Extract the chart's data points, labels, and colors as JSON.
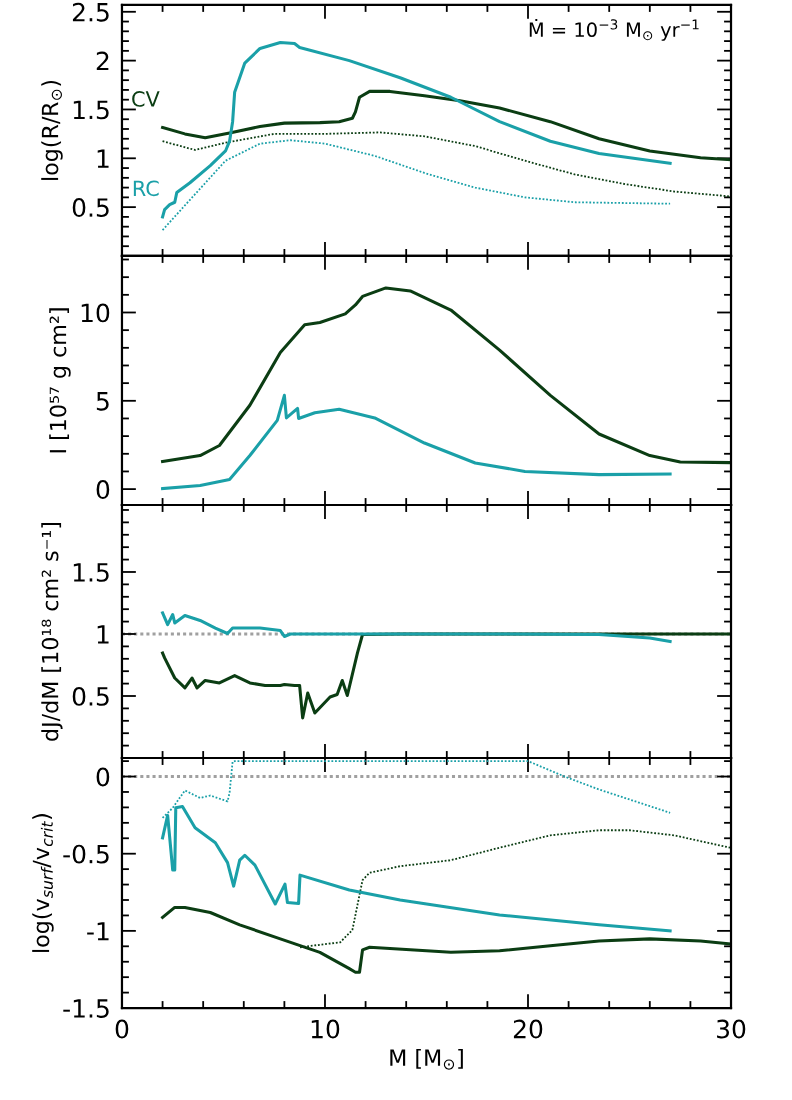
{
  "chart_data": [
    {
      "type": "line",
      "ylabel": "log(R/R$_{⊙}$)",
      "xlim": [
        0,
        30
      ],
      "xticks": [
        0,
        10,
        20,
        30
      ],
      "ylim": [
        0,
        2.57
      ],
      "yticks": [
        0.5,
        1,
        1.5,
        2,
        2.5
      ],
      "tick_labels": "y",
      "legend": false,
      "grid": false,
      "annotations": [
        "Ṁ = 10$^{−3}$ M$_{⊙}$ yr$^{−1}$"
      ],
      "series": [
        {
          "name": "CV",
          "color": "#0b3d13",
          "line_style": "solid",
          "x": [
            2.0,
            3.1,
            4.1,
            5.3,
            6.8,
            8.0,
            9.75,
            10.7,
            11.35,
            11.5,
            11.7,
            12.2,
            13.2,
            14.9,
            16.65,
            18.6,
            21.1,
            23.5,
            26,
            28.5,
            29.95
          ],
          "values": [
            1.315,
            1.25,
            1.21,
            1.26,
            1.325,
            1.36,
            1.365,
            1.375,
            1.41,
            1.475,
            1.625,
            1.685,
            1.685,
            1.64,
            1.59,
            1.515,
            1.375,
            1.2,
            1.075,
            1.005,
            0.985
          ]
        },
        {
          "color": "#0b3d13",
          "line_style": "dotted",
          "x": [
            2.0,
            3.6,
            5.1,
            7.5,
            10,
            12.7,
            14.9,
            17.4,
            19.85,
            22.3,
            24.8,
            27.2,
            29.95
          ],
          "values": [
            1.175,
            1.085,
            1.16,
            1.25,
            1.25,
            1.265,
            1.225,
            1.125,
            0.975,
            0.835,
            0.735,
            0.66,
            0.61
          ]
        },
        {
          "name": "RC",
          "color": "#1aa0a8",
          "line_style": "solid",
          "x": [
            2.0,
            2.1,
            2.35,
            2.6,
            2.7,
            3.35,
            4.35,
            5.1,
            5.3,
            5.45,
            5.55,
            6.05,
            6.8,
            7.8,
            8.5,
            8.75,
            11.2,
            13.7,
            16.2,
            18.6,
            21.1,
            23.5,
            27.0
          ],
          "values": [
            0.4,
            0.475,
            0.525,
            0.55,
            0.65,
            0.75,
            0.925,
            1.075,
            1.175,
            1.375,
            1.675,
            1.975,
            2.125,
            2.185,
            2.175,
            2.135,
            2.0,
            1.825,
            1.625,
            1.375,
            1.175,
            1.05,
            0.95
          ]
        },
        {
          "color": "#1aa0a8",
          "line_style": "dotted",
          "x": [
            2.0,
            3.35,
            5.1,
            6.8,
            8.3,
            10,
            12.45,
            14.9,
            17.4,
            19.85,
            22.3,
            27.0
          ],
          "values": [
            0.265,
            0.575,
            0.975,
            1.15,
            1.185,
            1.15,
            1.025,
            0.85,
            0.7,
            0.6,
            0.55,
            0.535
          ]
        }
      ]
    },
    {
      "type": "line",
      "ylabel": "I [10⁵⁷ g cm²]",
      "xlim": [
        0,
        30
      ],
      "xticks": [
        0,
        10,
        20,
        30
      ],
      "ylim": [
        -0.9,
        13.2
      ],
      "yticks": [
        0,
        5,
        10
      ],
      "tick_labels": "y",
      "legend": false,
      "grid": false,
      "series": [
        {
          "color": "#0b3d13",
          "line_style": "solid",
          "x": [
            2.0,
            3.85,
            4.8,
            6.3,
            7.8,
            9.0,
            9.75,
            11.0,
            11.5,
            11.85,
            13.0,
            14.2,
            16.2,
            18.6,
            21.1,
            23.5,
            26,
            27.5,
            29.95
          ],
          "values": [
            1.56,
            1.9,
            2.47,
            4.75,
            7.73,
            9.3,
            9.43,
            9.92,
            10.43,
            10.91,
            11.39,
            11.22,
            10.14,
            7.87,
            5.31,
            3.12,
            1.9,
            1.53,
            1.5
          ]
        },
        {
          "color": "#1aa0a8",
          "line_style": "solid",
          "x": [
            2.0,
            3.85,
            5.3,
            6.3,
            7.65,
            8.0,
            8.1,
            8.65,
            8.7,
            9.5,
            10.7,
            12.45,
            14.9,
            17.4,
            19.85,
            23.5,
            27.0
          ],
          "values": [
            0.03,
            0.2,
            0.54,
            1.9,
            3.89,
            5.31,
            4.03,
            4.57,
            4.0,
            4.32,
            4.52,
            4.03,
            2.61,
            1.48,
            1.0,
            0.82,
            0.85
          ]
        }
      ]
    },
    {
      "type": "line",
      "ylabel": "dJ/dM [10¹⁸ cm² s⁻¹]",
      "xlim": [
        0,
        30
      ],
      "xticks": [
        0,
        10,
        20,
        30
      ],
      "ylim": [
        0,
        2.04
      ],
      "yticks": [
        0.5,
        1,
        1.5
      ],
      "tick_labels": "y",
      "legend": false,
      "grid": false,
      "ref_lines": [
        {
          "axis": "y",
          "value": 1,
          "color": "#a0a0a0",
          "line_style": "dotted"
        }
      ],
      "series": [
        {
          "color": "#0b3d13",
          "line_style": "solid",
          "x": [
            2.0,
            2.1,
            2.6,
            3.1,
            3.45,
            3.7,
            4.1,
            4.8,
            5.55,
            6.3,
            7.05,
            7.8,
            8.0,
            8.5,
            8.75,
            8.9,
            9.15,
            9.5,
            10.25,
            10.6,
            10.85,
            11.1,
            11.6,
            11.85,
            13.7,
            29.95
          ],
          "values": [
            0.847,
            0.807,
            0.645,
            0.565,
            0.645,
            0.565,
            0.625,
            0.605,
            0.665,
            0.605,
            0.585,
            0.585,
            0.593,
            0.585,
            0.585,
            0.323,
            0.524,
            0.363,
            0.492,
            0.512,
            0.625,
            0.504,
            0.847,
            0.996,
            1.0,
            1.0
          ]
        },
        {
          "color": "#1aa0a8",
          "line_style": "solid",
          "x": [
            2.0,
            2.25,
            2.5,
            2.6,
            3.1,
            3.85,
            4.6,
            5.2,
            5.45,
            6.8,
            7.8,
            8.0,
            8.3,
            11.2,
            18.6,
            23.5,
            26,
            27.0
          ],
          "values": [
            1.17,
            1.076,
            1.157,
            1.089,
            1.149,
            1.109,
            1.048,
            1.004,
            1.048,
            1.048,
            1.028,
            0.98,
            1.0,
            1.0,
            1.0,
            0.996,
            0.968,
            0.94
          ]
        }
      ]
    },
    {
      "type": "line",
      "ylabel": "log(v$_{surf}$/v$_{crit}$)",
      "xlabel": "M [M$_{⊙}$]",
      "xlim": [
        0,
        30
      ],
      "xticks": [
        0,
        10,
        20,
        30
      ],
      "ylim": [
        -1.5,
        0.12
      ],
      "yticks": [
        {
          "value": -1.5,
          "label": "-1.5"
        },
        {
          "value": -1,
          "label": "-1"
        },
        {
          "value": -0.5,
          "label": "-0.5"
        },
        0
      ],
      "legend": false,
      "grid": false,
      "ref_lines": [
        {
          "axis": "y",
          "value": 0,
          "color": "#a0a0a0",
          "line_style": "dotted"
        }
      ],
      "series": [
        {
          "color": "#0b3d13",
          "line_style": "solid",
          "x": [
            2.0,
            2.6,
            3.1,
            4.35,
            5.8,
            7.8,
            9.75,
            11.2,
            11.5,
            11.7,
            11.85,
            12.2,
            16.2,
            18.6,
            21.1,
            23.5,
            26,
            28.5,
            29.95
          ],
          "values": [
            -0.913,
            -0.848,
            -0.848,
            -0.881,
            -0.961,
            -1.052,
            -1.139,
            -1.245,
            -1.268,
            -1.268,
            -1.123,
            -1.106,
            -1.139,
            -1.129,
            -1.097,
            -1.065,
            -1.052,
            -1.065,
            -1.084
          ]
        },
        {
          "color": "#0b3d13",
          "line_style": "dotted",
          "x": [
            8.77,
            10.75,
            11.35,
            11.6,
            11.85,
            12.2,
            13.7,
            16.2,
            18.6,
            21.1,
            23.5,
            25,
            27.2,
            29.95
          ],
          "values": [
            -1.106,
            -1.074,
            -0.994,
            -0.832,
            -0.671,
            -0.623,
            -0.581,
            -0.542,
            -0.461,
            -0.381,
            -0.348,
            -0.348,
            -0.381,
            -0.461
          ]
        },
        {
          "color": "#1aa0a8",
          "line_style": "solid",
          "x": [
            2.0,
            2.25,
            2.5,
            2.6,
            2.65,
            2.98,
            3.6,
            4.6,
            5.2,
            5.5,
            5.8,
            6.05,
            6.55,
            7.55,
            8.03,
            8.15,
            8.7,
            8.77,
            11.2,
            13.7,
            18.6,
            23.5,
            27.0
          ],
          "values": [
            -0.397,
            -0.252,
            -0.606,
            -0.606,
            -0.203,
            -0.194,
            -0.332,
            -0.429,
            -0.558,
            -0.71,
            -0.542,
            -0.51,
            -0.574,
            -0.826,
            -0.697,
            -0.816,
            -0.823,
            -0.639,
            -0.735,
            -0.8,
            -0.897,
            -0.961,
            -1.0
          ]
        },
        {
          "color": "#1aa0a8",
          "line_style": "dotted",
          "x": [
            2.0,
            2.5,
            3.1,
            3.85,
            4.35,
            5.2,
            5.3,
            5.45,
            5.55,
            20.0,
            21.8,
            23.5,
            27.0
          ],
          "values": [
            -0.268,
            -0.203,
            -0.09,
            -0.139,
            -0.123,
            -0.161,
            -0.106,
            0.097,
            0.1,
            0.1,
            0.0,
            -0.084,
            -0.235
          ]
        }
      ]
    }
  ]
}
